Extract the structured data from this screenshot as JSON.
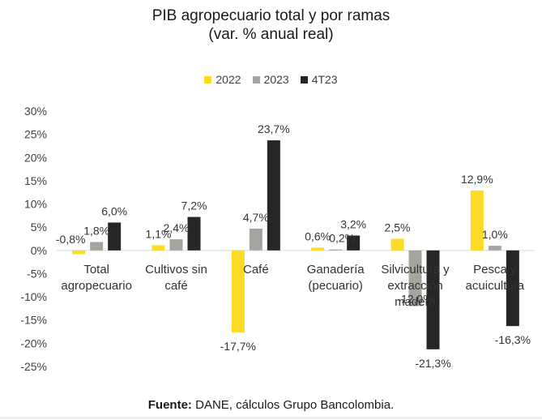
{
  "chart_data": {
    "type": "bar",
    "title": "PIB agropecuario total y por ramas",
    "subtitle": "(var. % anual real)",
    "categories": [
      [
        "Total",
        "agropecuario"
      ],
      [
        "Cultivos sin",
        "café"
      ],
      [
        "Café"
      ],
      [
        "Ganadería",
        "(pecuario)"
      ],
      [
        "Silvicultura y",
        "extracción",
        "madera"
      ],
      [
        "Pesca y",
        "acuicultura"
      ]
    ],
    "series": [
      {
        "name": "2022",
        "color": "#FDDA24",
        "values": [
          -0.8,
          1.1,
          -17.7,
          0.6,
          2.5,
          12.9
        ],
        "labels": [
          "-0,8%",
          "1,1%",
          "-17,7%",
          "0,6%",
          "2,5%",
          "12,9%"
        ]
      },
      {
        "name": "2023",
        "color": "#A6A49E",
        "values": [
          1.8,
          2.4,
          4.7,
          0.2,
          -12.0,
          1.0
        ],
        "labels": [
          "1,8%",
          "2,4%",
          "4,7%",
          "0,2%",
          "-12,0%",
          "1,0%"
        ]
      },
      {
        "name": "4T23",
        "color": "#262626",
        "values": [
          6.0,
          7.2,
          23.7,
          3.2,
          -21.3,
          -16.3
        ],
        "labels": [
          "6,0%",
          "7,2%",
          "23,7%",
          "3,2%",
          "-21,3%",
          "-16,3%"
        ]
      }
    ],
    "yticks": [
      "30%",
      "25%",
      "20%",
      "15%",
      "10%",
      "5%",
      "0%",
      "-5%",
      "-10%",
      "-15%",
      "-20%",
      "-25%"
    ],
    "ylim": [
      -25,
      30
    ],
    "grid": false,
    "legend_position": "top-center"
  },
  "source": {
    "label": "Fuente:",
    "text": " DANE, cálculos Grupo Bancolombia."
  }
}
